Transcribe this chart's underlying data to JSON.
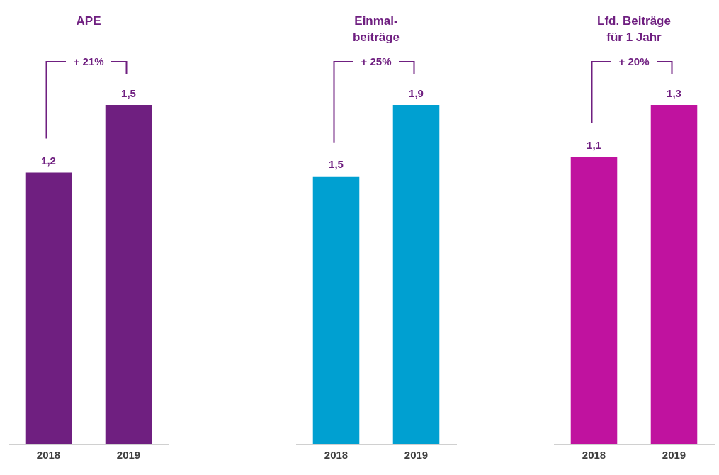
{
  "chart_data": [
    {
      "type": "bar",
      "title": "APE",
      "categories": [
        "2018",
        "2019"
      ],
      "values": [
        1.2,
        1.5
      ],
      "value_labels": [
        "1,2",
        "1,5"
      ],
      "color": "#6f1f80",
      "tick_labels": "x",
      "annotations": [
        "+ 21%"
      ]
    },
    {
      "type": "bar",
      "title": "Einmal-\nbeiträge",
      "categories": [
        "2018",
        "2019"
      ],
      "values": [
        1.5,
        1.9
      ],
      "value_labels": [
        "1,5",
        "1,9"
      ],
      "color": "#00a0d1",
      "tick_labels": "x",
      "annotations": [
        "+ 25%"
      ]
    },
    {
      "type": "bar",
      "title": "Lfd. Beiträge\nfür 1 Jahr",
      "categories": [
        "2018",
        "2019"
      ],
      "values": [
        1.1,
        1.3
      ],
      "value_labels": [
        "1,1",
        "1,3"
      ],
      "color": "#c0129f",
      "tick_labels": "x",
      "annotations": [
        "+ 20%"
      ]
    }
  ]
}
